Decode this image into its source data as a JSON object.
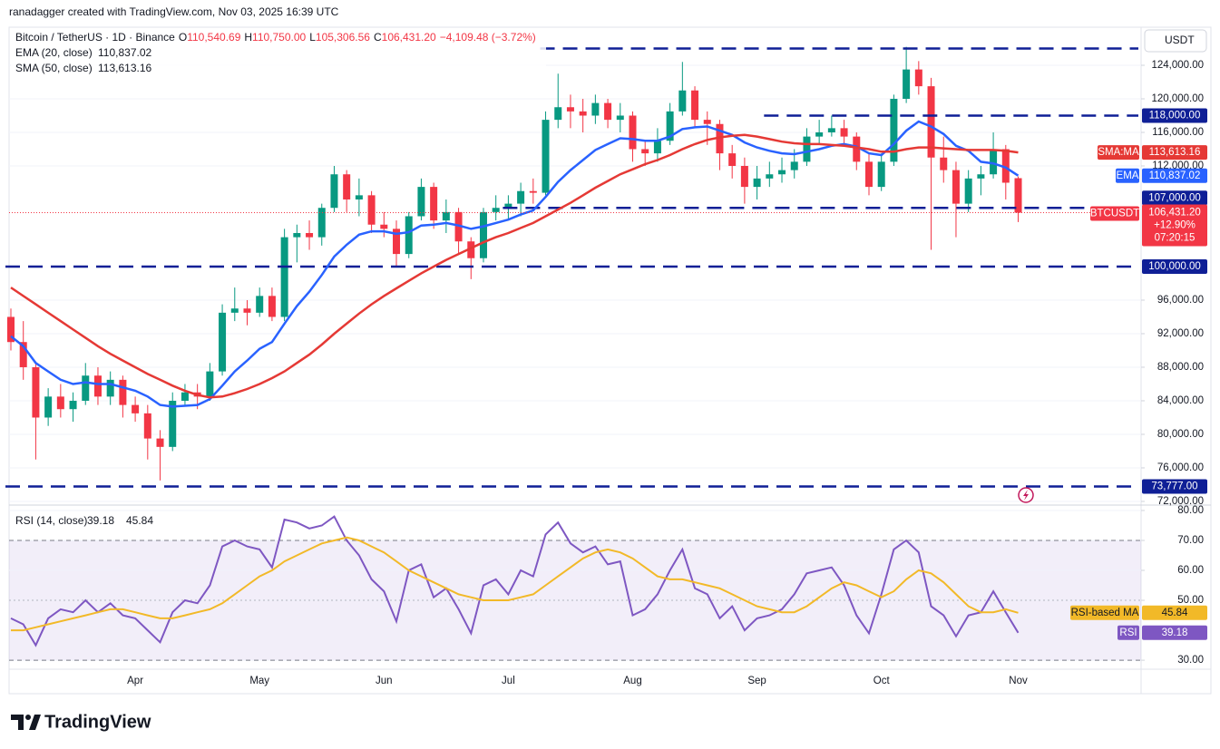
{
  "attribution": "ranadagger created with TradingView.com, Nov 03, 2025 16:39 UTC",
  "branding": "TradingView",
  "chart_data": [
    {
      "type": "candlestick",
      "title": "Bitcoin / TetherUS · 1D · Binance",
      "currency": "USDT",
      "ohlc_labels": [
        {
          "key": "O",
          "value": "110,540.69"
        },
        {
          "key": "H",
          "value": "110,750.00"
        },
        {
          "key": "L",
          "value": "105,306.56"
        },
        {
          "key": "C",
          "value": "106,431.20"
        }
      ],
      "change_label": "−4,109.48 (−3.72%)",
      "categories": [
        null,
        null,
        null,
        null,
        null,
        null,
        null,
        null,
        null,
        null,
        "Apr",
        null,
        null,
        null,
        null,
        null,
        null,
        null,
        null,
        null,
        "May",
        null,
        null,
        null,
        null,
        null,
        null,
        null,
        null,
        null,
        "Jun",
        null,
        null,
        null,
        null,
        null,
        null,
        null,
        null,
        null,
        "Jul",
        null,
        null,
        null,
        null,
        null,
        null,
        null,
        null,
        null,
        "Aug",
        null,
        null,
        null,
        null,
        null,
        null,
        null,
        null,
        null,
        "Sep",
        null,
        null,
        null,
        null,
        null,
        null,
        null,
        null,
        null,
        "Oct",
        null,
        null,
        null,
        null,
        null,
        null,
        null,
        null,
        null,
        null,
        "Nov"
      ],
      "open": [
        94000,
        91000,
        88000,
        82000,
        84500,
        83000,
        84000,
        87000,
        84500,
        86500,
        83500,
        82500,
        79500,
        78500,
        84000,
        85000,
        84500,
        87500,
        94500,
        95000,
        94500,
        96500,
        94000,
        103500,
        104000,
        103500,
        107000,
        111000,
        108000,
        108500,
        105000,
        104500,
        101500,
        106000,
        109500,
        105500,
        106500,
        103000,
        101000,
        106500,
        107000,
        107500,
        109000,
        108800,
        117500,
        119000,
        118500,
        118000,
        119500,
        117500,
        118000,
        114000,
        113500,
        115000,
        118500,
        121000,
        117500,
        117000,
        113500,
        112000,
        109500,
        110500,
        111000,
        111500,
        112500,
        115500,
        116000,
        116500,
        115500,
        112500,
        109500,
        112500,
        120000,
        123500,
        121500,
        113000,
        111500,
        107500,
        110500,
        111000,
        114000,
        110540.69
      ],
      "high": [
        95000,
        93500,
        88500,
        85500,
        86000,
        85000,
        88500,
        88000,
        87500,
        87000,
        84500,
        83500,
        80500,
        85000,
        86000,
        86000,
        88500,
        95500,
        97500,
        96000,
        97500,
        97500,
        104500,
        105000,
        105500,
        107500,
        112000,
        111500,
        110500,
        109000,
        106500,
        105500,
        106500,
        110500,
        110000,
        108000,
        107000,
        103500,
        107000,
        108500,
        108500,
        110000,
        110500,
        118500,
        123000,
        120500,
        120000,
        120500,
        120000,
        119500,
        118500,
        115000,
        116500,
        119500,
        124400,
        121500,
        118500,
        117500,
        114500,
        113000,
        112000,
        112500,
        113000,
        114000,
        116500,
        117500,
        118000,
        117500,
        116000,
        113500,
        113500,
        120500,
        126200,
        124500,
        122500,
        115500,
        112500,
        111500,
        112000,
        116000,
        114500,
        110750
      ],
      "low": [
        90000,
        86500,
        77000,
        81000,
        82000,
        81500,
        83500,
        83500,
        83500,
        82000,
        81500,
        77000,
        74500,
        78000,
        83500,
        83000,
        84000,
        87000,
        93500,
        93000,
        94000,
        93500,
        93500,
        100500,
        102000,
        102500,
        106500,
        106500,
        106000,
        104000,
        103500,
        100000,
        101000,
        105500,
        104500,
        104000,
        101500,
        98500,
        100500,
        105500,
        105500,
        106000,
        107500,
        108500,
        116500,
        116500,
        116000,
        117000,
        116500,
        116000,
        112500,
        112000,
        112500,
        114500,
        118000,
        116500,
        114500,
        111500,
        110500,
        107500,
        108000,
        109500,
        110000,
        110500,
        112000,
        114500,
        115500,
        114500,
        111500,
        108500,
        109000,
        112000,
        119500,
        120500,
        102000,
        110000,
        103500,
        106500,
        108500,
        110500,
        108000,
        105306.56
      ],
      "close": [
        91000,
        88000,
        82000,
        84500,
        83000,
        84000,
        87000,
        84500,
        86500,
        83500,
        82500,
        79500,
        78500,
        84000,
        85000,
        84500,
        87500,
        94500,
        95000,
        94500,
        96500,
        94000,
        103500,
        104000,
        103500,
        107000,
        111000,
        108000,
        108500,
        105000,
        104500,
        101500,
        106000,
        109500,
        105500,
        106500,
        103000,
        101000,
        106500,
        107000,
        107500,
        109000,
        108800,
        117500,
        119000,
        118500,
        118000,
        119500,
        117500,
        118000,
        114000,
        113500,
        115000,
        118500,
        121000,
        117500,
        117000,
        113500,
        112000,
        109500,
        110500,
        111000,
        111500,
        112500,
        115500,
        116000,
        116500,
        115500,
        112500,
        109500,
        112500,
        120000,
        123500,
        121500,
        113000,
        111500,
        107500,
        110500,
        111000,
        114000,
        110000,
        106431.2
      ],
      "up_color": "#089981",
      "down_color": "#f23645",
      "series": [
        {
          "name": "EMA (20, close)",
          "color": "#2962ff",
          "value_label": "110,837.02",
          "tag": "EMA",
          "values": [
            91700,
            90500,
            88500,
            87500,
            86500,
            86000,
            86200,
            86000,
            86000,
            85600,
            85200,
            84500,
            83500,
            83300,
            83400,
            83500,
            84200,
            85800,
            87500,
            88800,
            90200,
            91000,
            93200,
            95300,
            97000,
            99000,
            101200,
            102600,
            103800,
            104200,
            104200,
            103900,
            104100,
            104900,
            105000,
            105200,
            104900,
            104500,
            104800,
            105200,
            105600,
            106200,
            106700,
            108300,
            110100,
            111500,
            112700,
            113900,
            114600,
            115300,
            115200,
            115000,
            115000,
            115500,
            116400,
            116600,
            116700,
            116200,
            115700,
            114800,
            114200,
            113800,
            113500,
            113400,
            113700,
            114000,
            114400,
            114600,
            114300,
            113500,
            113300,
            114600,
            116200,
            117300,
            116700,
            115800,
            114400,
            113800,
            112500,
            112300,
            111800,
            110837.02
          ]
        },
        {
          "name": "SMA (50, close)",
          "color": "#e53935",
          "value_label": "113,613.16",
          "tag": "SMA:MA",
          "values": [
            97500,
            96500,
            95500,
            94500,
            93500,
            92500,
            91500,
            90500,
            89600,
            88800,
            88000,
            87200,
            86500,
            85800,
            85200,
            84700,
            84400,
            84500,
            84900,
            85400,
            86000,
            86700,
            87500,
            88500,
            89500,
            90700,
            92000,
            93200,
            94400,
            95500,
            96500,
            97400,
            98300,
            99200,
            100000,
            100800,
            101500,
            102200,
            102900,
            103500,
            104000,
            104600,
            105200,
            106000,
            106800,
            107600,
            108500,
            109400,
            110200,
            111000,
            111600,
            112200,
            112700,
            113300,
            114000,
            114600,
            115100,
            115400,
            115600,
            115700,
            115500,
            115200,
            114900,
            114700,
            114600,
            114600,
            114500,
            114400,
            114200,
            114000,
            113700,
            113700,
            114000,
            114200,
            114200,
            114100,
            114000,
            113900,
            113900,
            113900,
            113800,
            113613.16
          ]
        }
      ],
      "levels": [
        {
          "value": 126000
        },
        {
          "value": 118000,
          "label": "118,000.00"
        },
        {
          "value": 107000,
          "label": "107,000.00"
        },
        {
          "value": 100000,
          "label": "100,000.00"
        },
        {
          "value": 73777,
          "label": "73,777.00"
        }
      ],
      "level_color": "#0f1f96",
      "last_price": {
        "value": 106431.2,
        "label": "106,431.20",
        "change": "+12.90%",
        "countdown": "07:20:15",
        "tag": "BTCUSDT"
      },
      "ylim": [
        71780,
        128540
      ],
      "yticks": [
        {
          "value": 124000,
          "label": "124,000.00"
        },
        {
          "value": 120000,
          "label": "120,000.00"
        },
        {
          "value": 116000,
          "label": "116,000.00"
        },
        {
          "value": 112000,
          "label": "112,000.00"
        },
        {
          "value": 96000,
          "label": "96,000.00"
        },
        {
          "value": 92000,
          "label": "92,000.00"
        },
        {
          "value": 88000,
          "label": "88,000.00"
        },
        {
          "value": 84000,
          "label": "84,000.00"
        },
        {
          "value": 80000,
          "label": "80,000.00"
        },
        {
          "value": 76000,
          "label": "76,000.00"
        },
        {
          "value": 72000,
          "label": "72,000.00"
        }
      ],
      "grid": true
    },
    {
      "type": "line",
      "title": "RSI (14, close)",
      "series": [
        {
          "name": "RSI",
          "color": "#7e57c2",
          "value_label": "39.18",
          "tag": "RSI",
          "values": [
            44,
            42,
            35,
            44,
            47,
            46,
            50,
            46,
            49,
            45,
            44,
            40,
            36,
            46,
            50,
            49,
            55,
            68,
            70,
            68,
            67,
            61,
            77,
            76,
            74,
            75,
            78,
            70,
            65,
            57,
            53,
            43,
            60,
            62,
            51,
            54,
            47,
            39,
            55,
            57,
            52,
            60,
            58,
            72,
            76,
            69,
            66,
            68,
            62,
            63,
            45,
            47,
            52,
            60,
            67,
            54,
            52,
            44,
            48,
            40,
            44,
            45,
            47,
            52,
            59,
            60,
            61,
            55,
            45,
            39,
            52,
            67,
            70,
            66,
            48,
            45,
            38,
            45,
            46,
            53,
            46,
            39.18
          ]
        },
        {
          "name": "RSI-based MA",
          "color": "#f2b928",
          "value_label": "45.84",
          "tag": "RSI-based MA",
          "values": [
            40,
            40,
            41,
            42,
            43,
            44,
            45,
            46,
            47,
            47,
            46,
            45,
            44,
            44,
            45,
            46,
            47,
            49,
            52,
            55,
            58,
            60,
            63,
            65,
            67,
            69,
            70,
            71,
            70,
            68,
            66,
            63,
            60,
            58,
            56,
            54,
            52,
            51,
            50,
            50,
            50,
            51,
            52,
            55,
            58,
            61,
            64,
            66,
            67,
            66,
            64,
            61,
            58,
            57,
            57,
            56,
            55,
            54,
            52,
            50,
            48,
            47,
            46,
            46,
            48,
            51,
            54,
            56,
            55,
            53,
            51,
            53,
            57,
            60,
            59,
            56,
            52,
            48,
            46,
            46,
            47,
            45.84
          ]
        }
      ],
      "band": [
        30,
        70
      ],
      "midline": 50,
      "ylim": [
        27,
        81.5
      ],
      "yticks": [
        {
          "value": 80,
          "label": "80.00"
        },
        {
          "value": 70,
          "label": "70.00"
        },
        {
          "value": 60,
          "label": "60.00"
        },
        {
          "value": 50,
          "label": "50.00"
        },
        {
          "value": 30,
          "label": "30.00"
        }
      ],
      "grid": true
    }
  ]
}
